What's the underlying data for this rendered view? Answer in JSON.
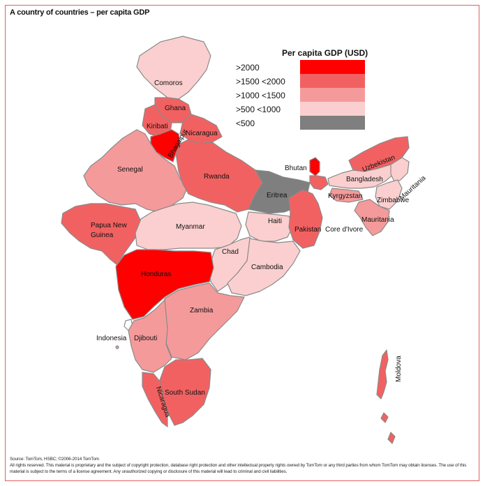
{
  "title": "A country of countries – per capita GDP",
  "legend": {
    "title": "Per capita  GDP (USD)",
    "items": [
      {
        "label": ">2000",
        "color": "#ff0000"
      },
      {
        "label": ">1500 <2000",
        "color": "#f26161"
      },
      {
        "label": ">1000 <1500",
        "color": "#f59a9a"
      },
      {
        "label": ">500 <1000",
        "color": "#fbcfcf"
      },
      {
        "label": "<500",
        "color": "#7f7f7f"
      }
    ]
  },
  "regions": [
    {
      "label": "Comoros",
      "color": "#fbcfcf"
    },
    {
      "label": "Ghana",
      "color": "#f26161"
    },
    {
      "label": "Kiribati",
      "color": "#f26161"
    },
    {
      "label": "Bhagalpur",
      "color": "#ff0000"
    },
    {
      "label": "Nicaragua",
      "color": "#f26161"
    },
    {
      "label": "Senegal",
      "color": "#f59a9a"
    },
    {
      "label": "Rwanda",
      "color": "#f26161"
    },
    {
      "label": "Eritrea",
      "color": "#7f7f7f"
    },
    {
      "label": "Bhutan",
      "color": "#ff0000"
    },
    {
      "label": "Uzbekistan",
      "color": "#f26161"
    },
    {
      "label": "Bangladesh",
      "color": "#fbcfcf"
    },
    {
      "label": "Mauritania",
      "color": "#fbcfcf"
    },
    {
      "label": "Kyrgyzstan",
      "color": "#f59a9a"
    },
    {
      "label": "Zimbabwe",
      "color": "#fbcfcf"
    },
    {
      "label": "Mauritania",
      "color": "#f59a9a"
    },
    {
      "label": "Papua New Guinea",
      "color": "#f26161"
    },
    {
      "label": "Myanmar",
      "color": "#fbcfcf"
    },
    {
      "label": "Haiti",
      "color": "#fbcfcf"
    },
    {
      "label": "Pakistan",
      "color": "#f26161"
    },
    {
      "label": "Core d'Ivore",
      "color": "#f59a9a"
    },
    {
      "label": "Chad",
      "color": "#fbcfcf"
    },
    {
      "label": "Cambodia",
      "color": "#fbcfcf"
    },
    {
      "label": "Honduras",
      "color": "#ff0000"
    },
    {
      "label": "Zambia",
      "color": "#f59a9a"
    },
    {
      "label": "Indonesia",
      "color": "#ffffff"
    },
    {
      "label": "Djibouti",
      "color": "#f59a9a"
    },
    {
      "label": "South Sudan",
      "color": "#f26161"
    },
    {
      "label": "Nicaragua",
      "color": "#f26161"
    },
    {
      "label": "Moldova",
      "color": "#f26161"
    }
  ],
  "footer": {
    "source": "Source: TomTom, HSBC; ©2006-2014 TomTom",
    "rights": "All rights reserved. This material is proprietary and the subject of copyright protection, database right protection and other intellectual property rights owned by TomTom or any third parties from whom TomTom may obtain licenses. The use of this material is subject to the terms of a license agreement. Any unauthorized copying or disclosure of this material will lead to criminal and civil liabilities."
  }
}
